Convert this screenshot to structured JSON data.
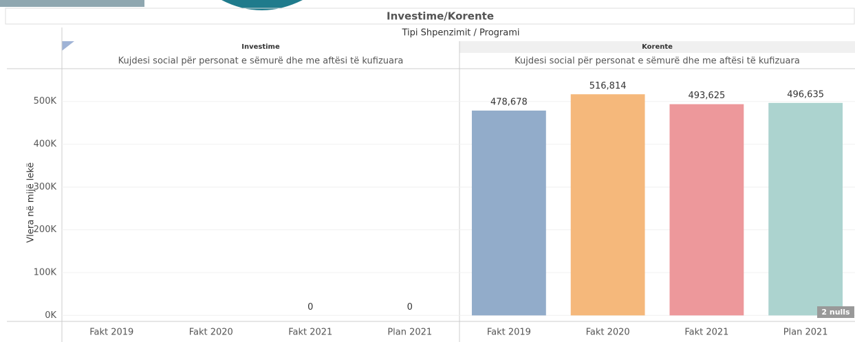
{
  "chart_data": {
    "type": "bar",
    "title": "Investime/Korente",
    "subtitle": "Tipi Shpenzimit / Programi",
    "y_label": "Vlera në mijë lekë",
    "categories": [
      "Fakt 2019",
      "Fakt 2020",
      "Fakt 2021",
      "Plan 2021"
    ],
    "series": [
      {
        "name": "Investime",
        "program": "Kujdesi social për personat e sëmurë dhe me aftësi të kufizuara",
        "values": [
          null,
          null,
          0,
          0
        ],
        "colors": [
          "#92acca",
          "#f5b87b",
          "#ed989b",
          "#acd3cf"
        ]
      },
      {
        "name": "Korente",
        "program": "Kujdesi social për personat e sëmurë dhe me aftësi të kufizuara",
        "values": [
          478678,
          516814,
          493625,
          496635
        ],
        "value_labels": [
          "478,678",
          "516,814",
          "493,625",
          "496,635"
        ],
        "colors": [
          "#92acca",
          "#f5b87b",
          "#ed989b",
          "#acd3cf"
        ]
      }
    ],
    "ylim": [
      -14000,
      575000
    ],
    "yticks": [
      {
        "value": 0,
        "label": "0K"
      },
      {
        "value": 100000,
        "label": "100K"
      },
      {
        "value": 200000,
        "label": "200K"
      },
      {
        "value": 300000,
        "label": "300K"
      },
      {
        "value": 400000,
        "label": "400K"
      },
      {
        "value": 500000,
        "label": "500K"
      }
    ],
    "grid": true,
    "null_indicator": "2 nulls"
  }
}
